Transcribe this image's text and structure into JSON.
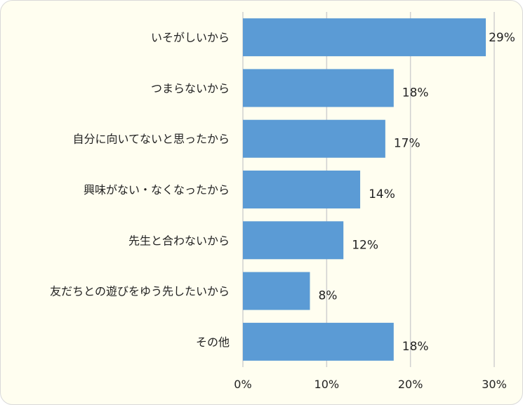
{
  "chart_data": {
    "type": "bar",
    "orientation": "horizontal",
    "categories": [
      "いそがしいから",
      "つまらないから",
      "自分に向いてないと思ったから",
      "興味がない・なくなったから",
      "先生と合わないから",
      "友だちとの遊びをゆう先したいから",
      "その他"
    ],
    "values": [
      29,
      18,
      17,
      14,
      12,
      8,
      18
    ],
    "value_labels": [
      "29%",
      "18%",
      "17%",
      "14%",
      "12%",
      "8%",
      "18%"
    ],
    "x_ticks": [
      "0%",
      "10%",
      "20%",
      "30%"
    ],
    "xlim": [
      0,
      30
    ],
    "grid": "vertical",
    "bar_color": "#5b9bd5",
    "background_color": "#fffef0"
  }
}
